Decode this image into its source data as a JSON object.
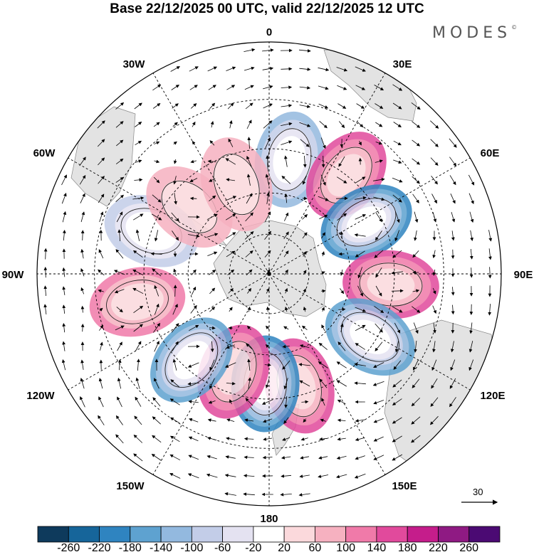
{
  "title": "Base 22/12/2025 00 UTC, valid 22/12/2025 12 UTC",
  "brand": "MODES",
  "brand_mark": "©",
  "longitude_labels": {
    "lon_0": "0",
    "lon_30e": "30E",
    "lon_60e": "60E",
    "lon_90e": "90E",
    "lon_120e": "120E",
    "lon_150e": "150E",
    "lon_180": "180",
    "lon_150w": "150W",
    "lon_120w": "120W",
    "lon_90w": "90W",
    "lon_60w": "60W",
    "lon_30w": "30W"
  },
  "reference_vector_label": "30",
  "colorbar": {
    "ticks": [
      "-260",
      "-220",
      "-180",
      "-140",
      "-100",
      "-60",
      "-20",
      "20",
      "60",
      "100",
      "140",
      "180",
      "220",
      "260"
    ],
    "colors": [
      "#0e3a5c",
      "#16659a",
      "#2f84c0",
      "#5ea2d0",
      "#93b9df",
      "#c3cde8",
      "#e4e2f1",
      "#ffffff",
      "#fbd9dc",
      "#f6b1c0",
      "#f07aa9",
      "#e14a9c",
      "#c51d8b",
      "#8f1a83",
      "#4b0a73"
    ]
  },
  "chart_data": {
    "type": "polar-stereographic anomaly map",
    "projection": "south polar stereographic",
    "variable_range": [
      -260,
      260
    ],
    "contour_step": 40,
    "anomalies": [
      {
        "lon": 10,
        "lat": -48,
        "value": -140
      },
      {
        "lon": 38,
        "lat": -45,
        "value": 160
      },
      {
        "lon": 62,
        "lat": -50,
        "value": -230
      },
      {
        "lon": 95,
        "lat": -46,
        "value": 140
      },
      {
        "lon": 122,
        "lat": -47,
        "value": -200
      },
      {
        "lon": 165,
        "lat": -48,
        "value": 140
      },
      {
        "lon": -178,
        "lat": -50,
        "value": -210
      },
      {
        "lon": -160,
        "lat": -52,
        "value": 160
      },
      {
        "lon": -138,
        "lat": -48,
        "value": -180
      },
      {
        "lon": -102,
        "lat": -42,
        "value": 100
      },
      {
        "lon": -70,
        "lat": -45,
        "value": -100
      },
      {
        "lon": -50,
        "lat": -52,
        "value": 60
      },
      {
        "lon": -20,
        "lat": -55,
        "value": 60
      }
    ]
  }
}
